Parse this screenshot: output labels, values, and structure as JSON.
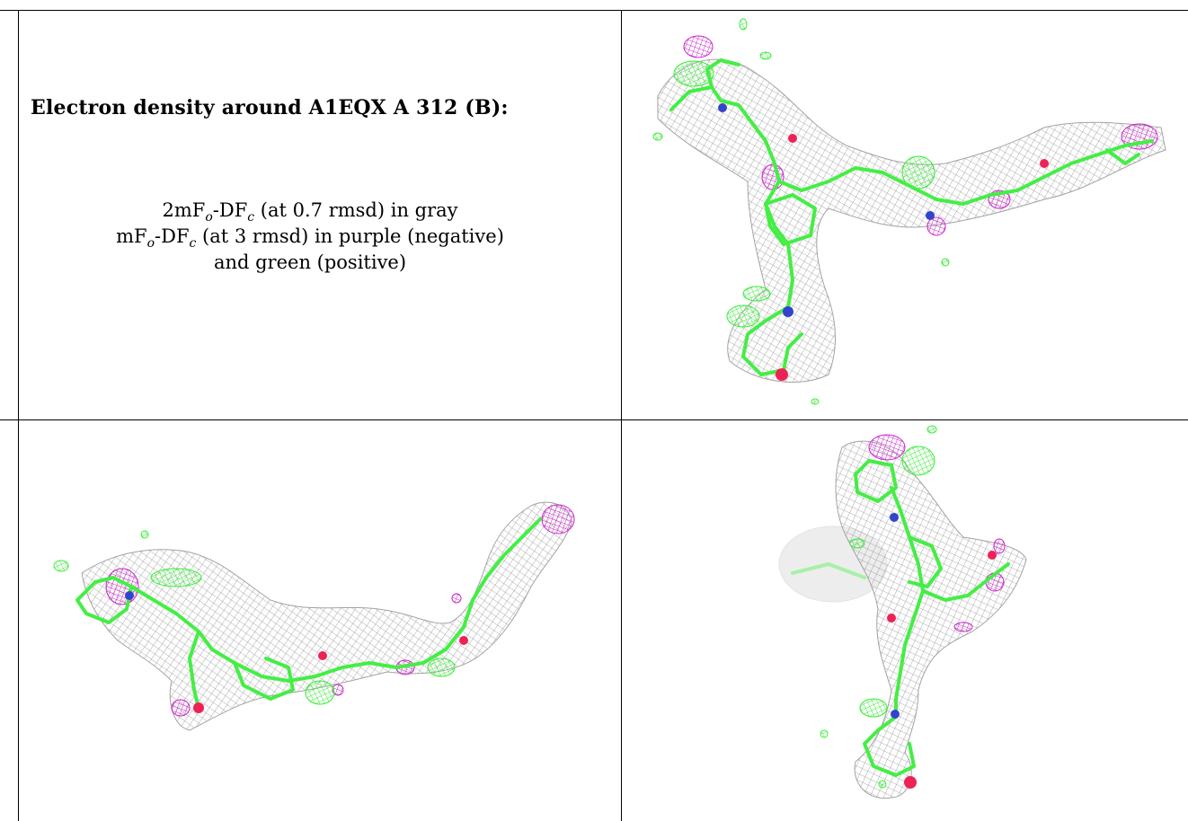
{
  "panel": {
    "title": "Electron density around A1EQX A 312 (B):",
    "legend": {
      "line1": {
        "pre": "2mF",
        "sub1": "o",
        "mid": "-DF",
        "sub2": "c",
        "post": " (at 0.7 rmsd) in gray"
      },
      "line2": {
        "pre": "mF",
        "sub1": "o",
        "mid": "-DF",
        "sub2": "c",
        "post": " (at 3 rmsd) in purple (negative)"
      },
      "line3": "and green (positive)"
    }
  },
  "views": [
    {
      "label": "view-top-right"
    },
    {
      "label": "view-bottom-left"
    },
    {
      "label": "view-bottom-right"
    }
  ],
  "colors": {
    "mesh_gray": "#9a9a9a",
    "model_green": "#33ee33",
    "negative_purple": "#cc22cc",
    "oxygen_red": "#ee2255",
    "nitrogen_blue": "#3344cc"
  }
}
